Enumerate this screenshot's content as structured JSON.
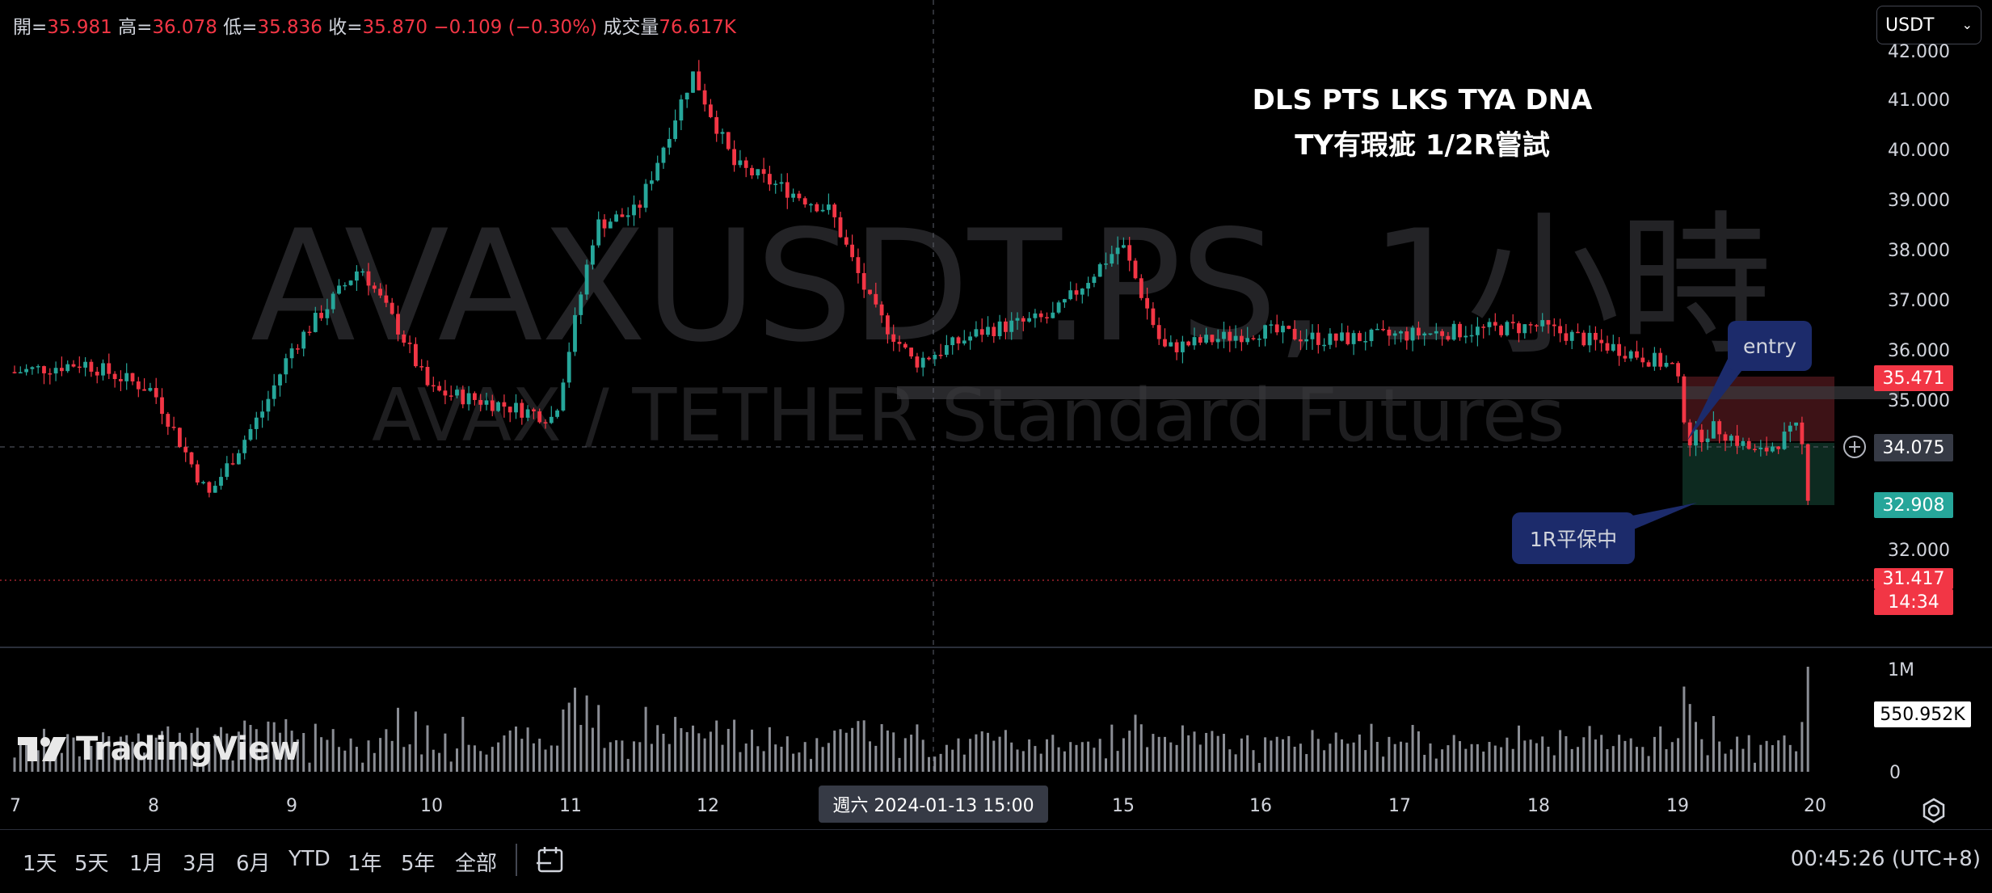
{
  "ohlc": {
    "open_label": "開=",
    "open": "35.981",
    "high_label": "高=",
    "high": "36.078",
    "low_label": "低=",
    "low": "35.836",
    "close_label": "收=",
    "close": "35.870",
    "change": "−0.109 (−0.30%)",
    "volume_label": "成交量",
    "volume": "76.617K"
  },
  "currency": {
    "value": "USDT"
  },
  "watermark": {
    "symbol": "AVAXUSDT.PS, 1小時",
    "description": "AVAX / TETHER Standard Futures"
  },
  "note": {
    "line1": "DLS PTS LKS TYA DNA",
    "line2": "TY有瑕疵 1/2R嘗試"
  },
  "annotations": {
    "entry": "entry",
    "breakeven": "1R平保中"
  },
  "price_axis": {
    "ticks": [
      "42.000",
      "41.000",
      "40.000",
      "39.000",
      "38.000",
      "37.000",
      "36.000",
      "35.000",
      "32.000"
    ],
    "stop_price": "35.471",
    "crosshair_price": "34.075",
    "target_price": "32.908",
    "last_price": "31.417",
    "countdown": "14:34",
    "volume_max": "1M",
    "volume_value": "550.952K",
    "volume_zero": "0"
  },
  "date_axis": {
    "labels": [
      "7",
      "8",
      "9",
      "10",
      "11",
      "12",
      "15",
      "16",
      "17",
      "18",
      "19",
      "20"
    ],
    "crosshair": "週六  2024-01-13   15:00"
  },
  "ranges": [
    "1天",
    "5天",
    "1月",
    "3月",
    "6月",
    "YTD",
    "1年",
    "5年",
    "全部"
  ],
  "clock": "00:45:26 (UTC+8)",
  "brand": "TradingView",
  "colors": {
    "up": "#26a69a",
    "down": "#f23645",
    "stop_zone": "#3d1216",
    "target_zone": "#0d2a20",
    "bubble": "#1c2b6b"
  },
  "chart_data": {
    "type": "candlestick",
    "symbol": "AVAXUSDT.PS",
    "interval": "1小時",
    "ylim": [
      31,
      42
    ],
    "approx_path": [
      {
        "x": "7",
        "y": 35.0
      },
      {
        "x": "7.5",
        "y": 35.2
      },
      {
        "x": "8",
        "y": 34.6
      },
      {
        "x": "8.4",
        "y": 32.3
      },
      {
        "x": "8.8",
        "y": 34.2
      },
      {
        "x": "9",
        "y": 35.5
      },
      {
        "x": "9.5",
        "y": 37.3
      },
      {
        "x": "9.8",
        "y": 35.8
      },
      {
        "x": "10",
        "y": 34.6
      },
      {
        "x": "10.5",
        "y": 34.3
      },
      {
        "x": "10.9",
        "y": 34.0
      },
      {
        "x": "11.2",
        "y": 38.2
      },
      {
        "x": "11.5",
        "y": 38.5
      },
      {
        "x": "11.9",
        "y": 41.5
      },
      {
        "x": "12.2",
        "y": 39.5
      },
      {
        "x": "12.9",
        "y": 38.5
      },
      {
        "x": "13.2",
        "y": 36.4
      },
      {
        "x": "13.5",
        "y": 35.2
      },
      {
        "x": "14",
        "y": 35.9
      },
      {
        "x": "14.5",
        "y": 36.2
      },
      {
        "x": "15",
        "y": 37.8
      },
      {
        "x": "15.3",
        "y": 35.5
      },
      {
        "x": "16",
        "y": 35.9
      },
      {
        "x": "16.5",
        "y": 35.7
      },
      {
        "x": "17",
        "y": 35.8
      },
      {
        "x": "17.5",
        "y": 35.9
      },
      {
        "x": "18",
        "y": 36.0
      },
      {
        "x": "18.6",
        "y": 35.5
      },
      {
        "x": "19",
        "y": 35.1
      },
      {
        "x": "19.1",
        "y": 33.5
      },
      {
        "x": "19.3",
        "y": 33.8
      },
      {
        "x": "19.6",
        "y": 33.2
      },
      {
        "x": "19.9",
        "y": 33.8
      },
      {
        "x": "20",
        "y": 31.4
      }
    ],
    "volume_max": "1M"
  }
}
